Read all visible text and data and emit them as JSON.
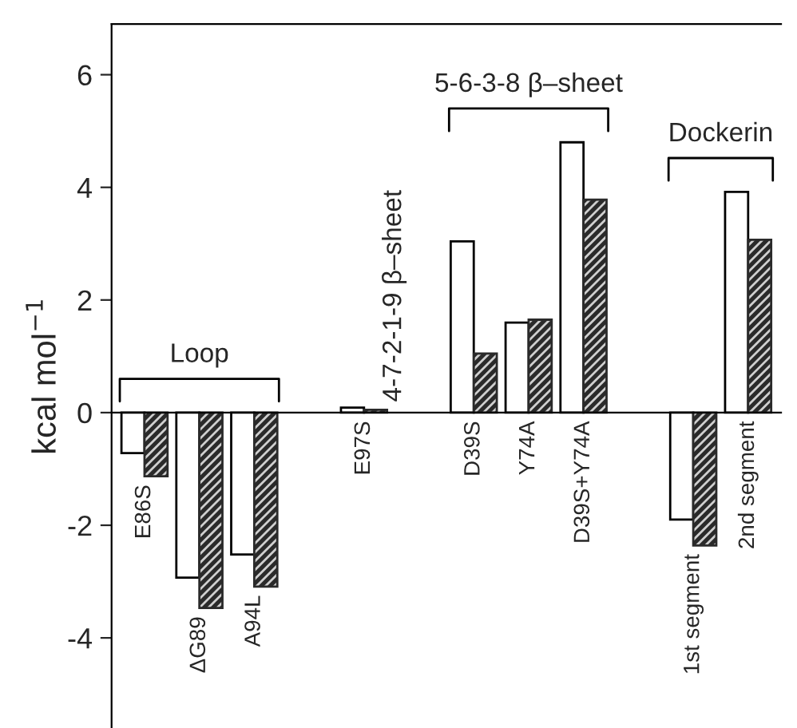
{
  "chart_data": {
    "type": "bar",
    "categories": [
      "E86S",
      "ΔG89",
      "A94L",
      null,
      "E97S",
      null,
      "D39S",
      "Y74A",
      "D39S+Y74A",
      null,
      "1st segment",
      "2nd segment"
    ],
    "series": [
      {
        "color": "#ffffff",
        "values": [
          -0.72,
          -2.93,
          -2.52,
          null,
          0.09,
          null,
          3.04,
          1.6,
          4.8,
          null,
          -1.9,
          3.92
        ]
      },
      {
        "color": "#2a2a2a",
        "values": [
          -1.13,
          -3.47,
          -3.09,
          null,
          0.05,
          null,
          1.05,
          1.65,
          3.78,
          null,
          -2.36,
          3.07
        ]
      }
    ],
    "ylabel": "kcal mol$^{−1}$",
    "ylim": [
      -5.6,
      6.9
    ],
    "yticks": [
      -4,
      -2,
      0,
      2,
      4,
      6
    ],
    "annotations": [
      "Loop",
      "4-7-2-1-9 β–sheet",
      "5-6-3-8 β–sheet",
      "Dockerin"
    ],
    "grid": false
  }
}
